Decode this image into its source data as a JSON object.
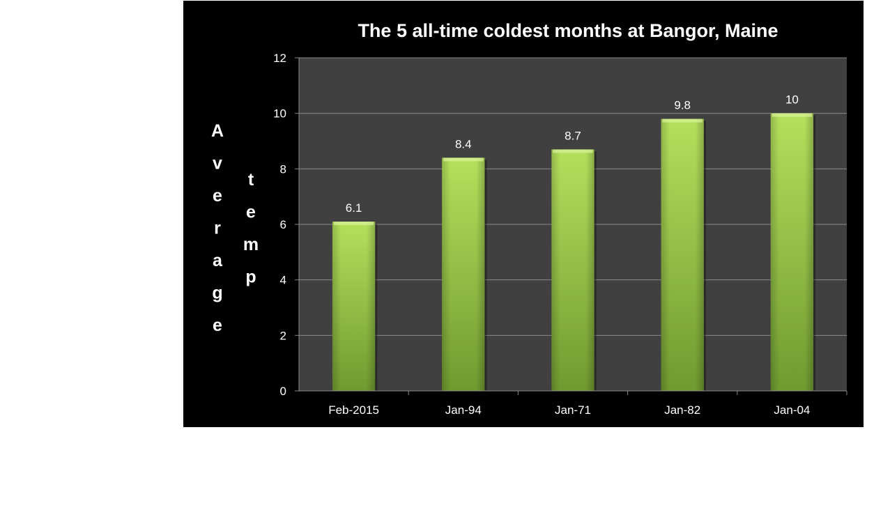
{
  "chart_data": {
    "type": "bar",
    "title": "The 5 all-time coldest months at Bangor, Maine",
    "ylabel_words": [
      "Average",
      "temp"
    ],
    "xlabel": "",
    "categories": [
      "Feb-2015",
      "Jan-94",
      "Jan-71",
      "Jan-82",
      "Jan-04"
    ],
    "values": [
      6.1,
      8.4,
      8.7,
      9.8,
      10
    ],
    "value_labels": [
      "6.1",
      "8.4",
      "8.7",
      "9.8",
      "10"
    ],
    "yticks": [
      "0",
      "2",
      "4",
      "6",
      "8",
      "10",
      "12"
    ],
    "ylim": [
      0,
      12
    ],
    "grid": true,
    "legend": "none",
    "colors": {
      "background": "#000000",
      "plot_area": "#404040",
      "gridline": "#8a8a8a",
      "bar_light": "#b4e05c",
      "bar_dark": "#6f9a30",
      "text": "#ffffff"
    }
  }
}
